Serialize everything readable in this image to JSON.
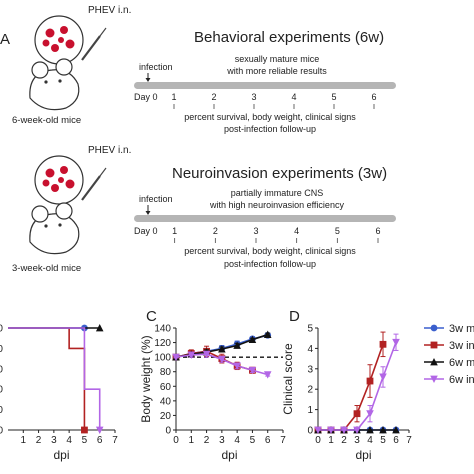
{
  "panel_a": {
    "label": "A",
    "behavioral": {
      "title": "Behavioral experiments (6w)",
      "inoculation": "PHEV i.n.",
      "mouse_label": "6-week-old mice",
      "infection_label": "infection",
      "note_line1": "sexually mature mice",
      "note_line2": "with more reliable results",
      "days": [
        "Day 0",
        "1",
        "2",
        "3",
        "4",
        "5",
        "6"
      ],
      "footer_line1": "percent survival, body weight, clinical signs",
      "footer_line2": "post-infection follow-up"
    },
    "neuroinvasion": {
      "title": "Neuroinvasion experiments (3w)",
      "inoculation": "PHEV i.n.",
      "mouse_label": "3-week-old mice",
      "infection_label": "infection",
      "note_line1": "partially immature CNS",
      "note_line2": "with high neuroinvasion efficiency",
      "days": [
        "Day 0",
        "1",
        "2",
        "3",
        "4",
        "5",
        "6"
      ],
      "footer_line1": "percent survival, body weight, clinical signs",
      "footer_line2": "post-infection follow-up"
    }
  },
  "colors": {
    "blue": "#3a5fcd",
    "red": "#b22222",
    "black": "#111111",
    "purple": "#b266e6",
    "timeline": "#b5b5b5",
    "virus": "#c8102e"
  },
  "legend": [
    "3w m",
    "3w in",
    "6w m",
    "6w in"
  ],
  "chart_data": [
    {
      "type": "line",
      "panel": "B",
      "xlabel": "dpi",
      "ylabel": "",
      "xlim": [
        0,
        7
      ],
      "ylim": [
        0,
        100
      ],
      "xticks": [
        "1",
        "2",
        "3",
        "4",
        "5",
        "6",
        "7"
      ],
      "yticks": [
        "0",
        "20",
        "40",
        "60",
        "80",
        "100"
      ],
      "series": [
        {
          "name": "3w m",
          "color": "blue",
          "step": true,
          "marker": "circle",
          "x": [
            0,
            5
          ],
          "y": [
            100,
            100
          ]
        },
        {
          "name": "3w in",
          "color": "red",
          "step": true,
          "marker": "square",
          "x": [
            0,
            4,
            5
          ],
          "y": [
            100,
            80,
            0
          ]
        },
        {
          "name": "6w m",
          "color": "black",
          "step": true,
          "marker": "triangle",
          "x": [
            0,
            6
          ],
          "y": [
            100,
            100
          ]
        },
        {
          "name": "6w in",
          "color": "purple",
          "step": true,
          "marker": "triangle-down",
          "x": [
            0,
            5,
            6
          ],
          "y": [
            100,
            40,
            0
          ]
        }
      ]
    },
    {
      "type": "line",
      "panel": "C",
      "xlabel": "dpi",
      "ylabel": "Body weight (%)",
      "xlim": [
        0,
        7
      ],
      "ylim": [
        0,
        140
      ],
      "xticks": [
        "0",
        "1",
        "2",
        "3",
        "4",
        "5",
        "6",
        "7"
      ],
      "yticks": [
        "0",
        "20",
        "40",
        "60",
        "80",
        "100",
        "120",
        "140"
      ],
      "reference_line": 100,
      "series": [
        {
          "name": "3w m",
          "color": "blue",
          "marker": "circle",
          "x": [
            0,
            1,
            2,
            3,
            4,
            5,
            6
          ],
          "y": [
            100,
            105,
            108,
            112,
            118,
            125,
            130
          ],
          "err": [
            1,
            3,
            4,
            4,
            4,
            3,
            3
          ]
        },
        {
          "name": "3w in",
          "color": "red",
          "marker": "square",
          "x": [
            0,
            1,
            2,
            3,
            4,
            5
          ],
          "y": [
            100,
            105,
            108,
            98,
            88,
            82
          ],
          "err": [
            1,
            5,
            7,
            6,
            5,
            4
          ]
        },
        {
          "name": "6w m",
          "color": "black",
          "marker": "triangle",
          "x": [
            0,
            1,
            2,
            3,
            4,
            5,
            6
          ],
          "y": [
            100,
            104,
            107,
            111,
            116,
            124,
            131
          ],
          "err": [
            1,
            2,
            3,
            3,
            3,
            2,
            2
          ]
        },
        {
          "name": "6w in",
          "color": "purple",
          "marker": "triangle-down",
          "x": [
            0,
            1,
            2,
            3,
            4,
            5,
            6
          ],
          "y": [
            100,
            103,
            104,
            97,
            88,
            82,
            76
          ],
          "err": [
            1,
            3,
            4,
            4,
            4,
            3,
            2
          ]
        }
      ]
    },
    {
      "type": "line",
      "panel": "D",
      "xlabel": "dpi",
      "ylabel": "Clinical score",
      "xlim": [
        0,
        7
      ],
      "ylim": [
        0,
        5
      ],
      "xticks": [
        "0",
        "1",
        "2",
        "3",
        "4",
        "5",
        "6",
        "7"
      ],
      "yticks": [
        "0",
        "1",
        "2",
        "3",
        "4",
        "5"
      ],
      "series": [
        {
          "name": "3w m",
          "color": "blue",
          "marker": "circle",
          "x": [
            0,
            1,
            2,
            3,
            4,
            5,
            6
          ],
          "y": [
            0,
            0,
            0,
            0,
            0,
            0,
            0
          ],
          "err": [
            0,
            0,
            0,
            0,
            0,
            0,
            0
          ]
        },
        {
          "name": "3w in",
          "color": "red",
          "marker": "square",
          "x": [
            0,
            1,
            2,
            3,
            4,
            5
          ],
          "y": [
            0,
            0,
            0,
            0.8,
            2.4,
            4.2
          ],
          "err": [
            0,
            0,
            0,
            0.4,
            0.8,
            0.6
          ]
        },
        {
          "name": "6w m",
          "color": "black",
          "marker": "triangle",
          "x": [
            0,
            1,
            2,
            3,
            4,
            5,
            6
          ],
          "y": [
            0,
            0,
            0,
            0,
            0,
            0,
            0
          ],
          "err": [
            0,
            0,
            0,
            0,
            0,
            0,
            0
          ]
        },
        {
          "name": "6w in",
          "color": "purple",
          "marker": "triangle-down",
          "x": [
            0,
            1,
            2,
            3,
            4,
            5,
            6
          ],
          "y": [
            0,
            0,
            0,
            0,
            0.8,
            2.6,
            4.3
          ],
          "err": [
            0,
            0,
            0,
            0,
            0.4,
            0.5,
            0.4
          ]
        }
      ]
    }
  ]
}
